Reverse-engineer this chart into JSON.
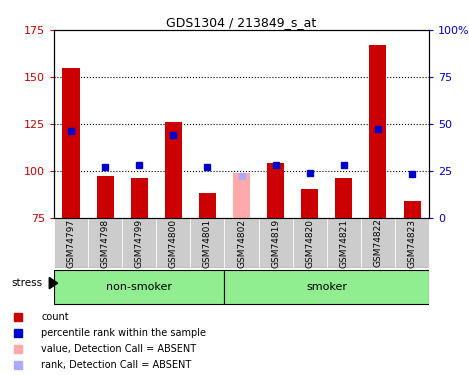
{
  "title": "GDS1304 / 213849_s_at",
  "samples": [
    "GSM74797",
    "GSM74798",
    "GSM74799",
    "GSM74800",
    "GSM74801",
    "GSM74802",
    "GSM74819",
    "GSM74820",
    "GSM74821",
    "GSM74822",
    "GSM74823"
  ],
  "bar_values": [
    155,
    97,
    96,
    126,
    88,
    null,
    104,
    90,
    96,
    167,
    84
  ],
  "bar_absent_values": [
    null,
    null,
    null,
    null,
    null,
    99,
    null,
    null,
    null,
    null,
    null
  ],
  "rank_values": [
    46,
    27,
    28,
    44,
    27,
    null,
    28,
    24,
    28,
    47,
    23
  ],
  "rank_absent_values": [
    null,
    null,
    null,
    null,
    null,
    22,
    null,
    null,
    null,
    null,
    null
  ],
  "bar_color": "#cc0000",
  "bar_absent_color": "#ffaaaa",
  "rank_color": "#0000cc",
  "rank_absent_color": "#aaaaff",
  "ylim_left": [
    75,
    175
  ],
  "ylim_right": [
    0,
    100
  ],
  "yticks_left": [
    75,
    100,
    125,
    150,
    175
  ],
  "yticks_right": [
    0,
    25,
    50,
    75,
    100
  ],
  "ytick_right_labels": [
    "0",
    "25",
    "50",
    "75",
    "100%"
  ],
  "hlines": [
    100,
    125,
    150
  ],
  "group_label_non_smoker": "non-smoker",
  "group_label_smoker": "smoker",
  "group_color": "#90ee90",
  "stress_label": "stress",
  "legend_items": [
    {
      "label": "count",
      "color": "#cc0000"
    },
    {
      "label": "percentile rank within the sample",
      "color": "#0000cc"
    },
    {
      "label": "value, Detection Call = ABSENT",
      "color": "#ffaaaa"
    },
    {
      "label": "rank, Detection Call = ABSENT",
      "color": "#aaaaff"
    }
  ],
  "bar_width": 0.5,
  "rank_marker_size": 5,
  "background_color": "#ffffff",
  "ylabel_left_color": "#cc0000",
  "ylabel_right_color": "#0000cc",
  "tick_bg_color": "#cccccc",
  "ns_count": 5,
  "s_count": 6
}
